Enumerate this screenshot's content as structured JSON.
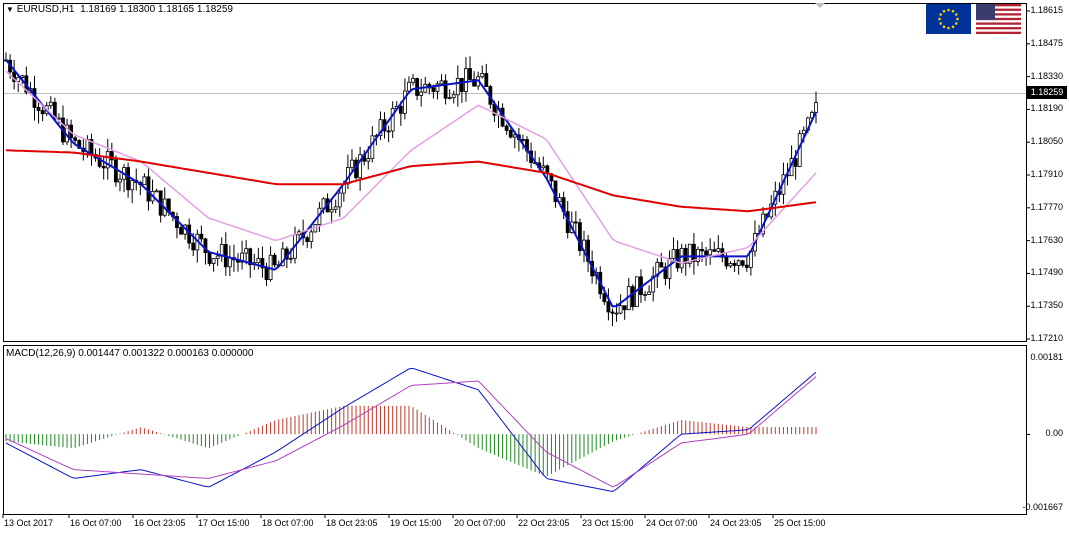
{
  "header": {
    "symbol": "EURUSD,H1",
    "ohlc": "1.18169 1.18300 1.18165 1.18259",
    "macd": "MACD(12,26,9) 0.001447 0.001322 0.000163 0.000000"
  },
  "flags": {
    "left": "eu-flag-icon",
    "right": "us-flag-icon"
  },
  "current_price": "1.18259",
  "price_axis": {
    "labels": [
      "1.18615",
      "1.18475",
      "1.18330",
      "1.18190",
      "1.18050",
      "1.17910",
      "1.17770",
      "1.17630",
      "1.17490",
      "1.17350",
      "1.17210"
    ]
  },
  "macd_axis": {
    "labels": [
      "0.00181",
      "0.00",
      "-0.001667"
    ]
  },
  "time_axis": {
    "labels": [
      "13 Oct 2017",
      "16 Oct 07:00",
      "16 Oct 23:05",
      "17 Oct 15:00",
      "18 Oct 07:00",
      "18 Oct 23:05",
      "19 Oct 15:00",
      "20 Oct 07:00",
      "22 Oct 23:05",
      "23 Oct 15:00",
      "24 Oct 07:00",
      "24 Oct 23:05",
      "25 Oct 15:00"
    ]
  },
  "colors": {
    "bull_hist": "#c0392b",
    "bear_hist": "#1e8a1e",
    "candle": "#000000",
    "ma_fast": "#0a14c8",
    "ma_mid": "#e4a0e4",
    "ma_slow": "#e00000",
    "macd_line": "#0a14c8",
    "signal_line": "#b040c0"
  },
  "chart_data": {
    "type": "line",
    "title": "EURUSD,H1",
    "x": [
      "13 Oct 2017",
      "16 Oct 07:00",
      "16 Oct 23:05",
      "17 Oct 15:00",
      "18 Oct 07:00",
      "18 Oct 23:05",
      "19 Oct 15:00",
      "20 Oct 07:00",
      "22 Oct 23:05",
      "23 Oct 15:00",
      "24 Oct 07:00",
      "24 Oct 23:05",
      "25 Oct 15:00"
    ],
    "ylim": [
      1.1721,
      1.1868
    ],
    "series": [
      {
        "values": [
          1.1845,
          1.1808,
          1.179,
          1.176,
          1.1752,
          1.179,
          1.1832,
          1.1836,
          1.1793,
          1.1735,
          1.1758,
          1.1758,
          1.1822
        ]
      },
      {
        "values": [
          1.184,
          1.1812,
          1.18,
          1.1775,
          1.1765,
          1.1775,
          1.1805,
          1.1825,
          1.181,
          1.1765,
          1.1755,
          1.1762,
          1.1795
        ]
      },
      {
        "values": [
          1.1805,
          1.1804,
          1.18,
          1.1795,
          1.179,
          1.179,
          1.1798,
          1.18,
          1.1795,
          1.1785,
          1.178,
          1.1778,
          1.1782
        ]
      }
    ],
    "macd": {
      "ylim": [
        -0.001667,
        0.00181
      ],
      "macd_line": [
        -0.0002,
        -0.001,
        -0.0008,
        -0.0012,
        -0.0004,
        0.0006,
        0.0015,
        0.001,
        -0.001,
        -0.0013,
        0.0,
        0.0001,
        0.0014
      ],
      "signal_line": [
        -0.0001,
        -0.0008,
        -0.0009,
        -0.001,
        -0.0006,
        0.0002,
        0.0011,
        0.0012,
        -0.0004,
        -0.0012,
        -0.0002,
        0.0,
        0.0013
      ]
    }
  }
}
